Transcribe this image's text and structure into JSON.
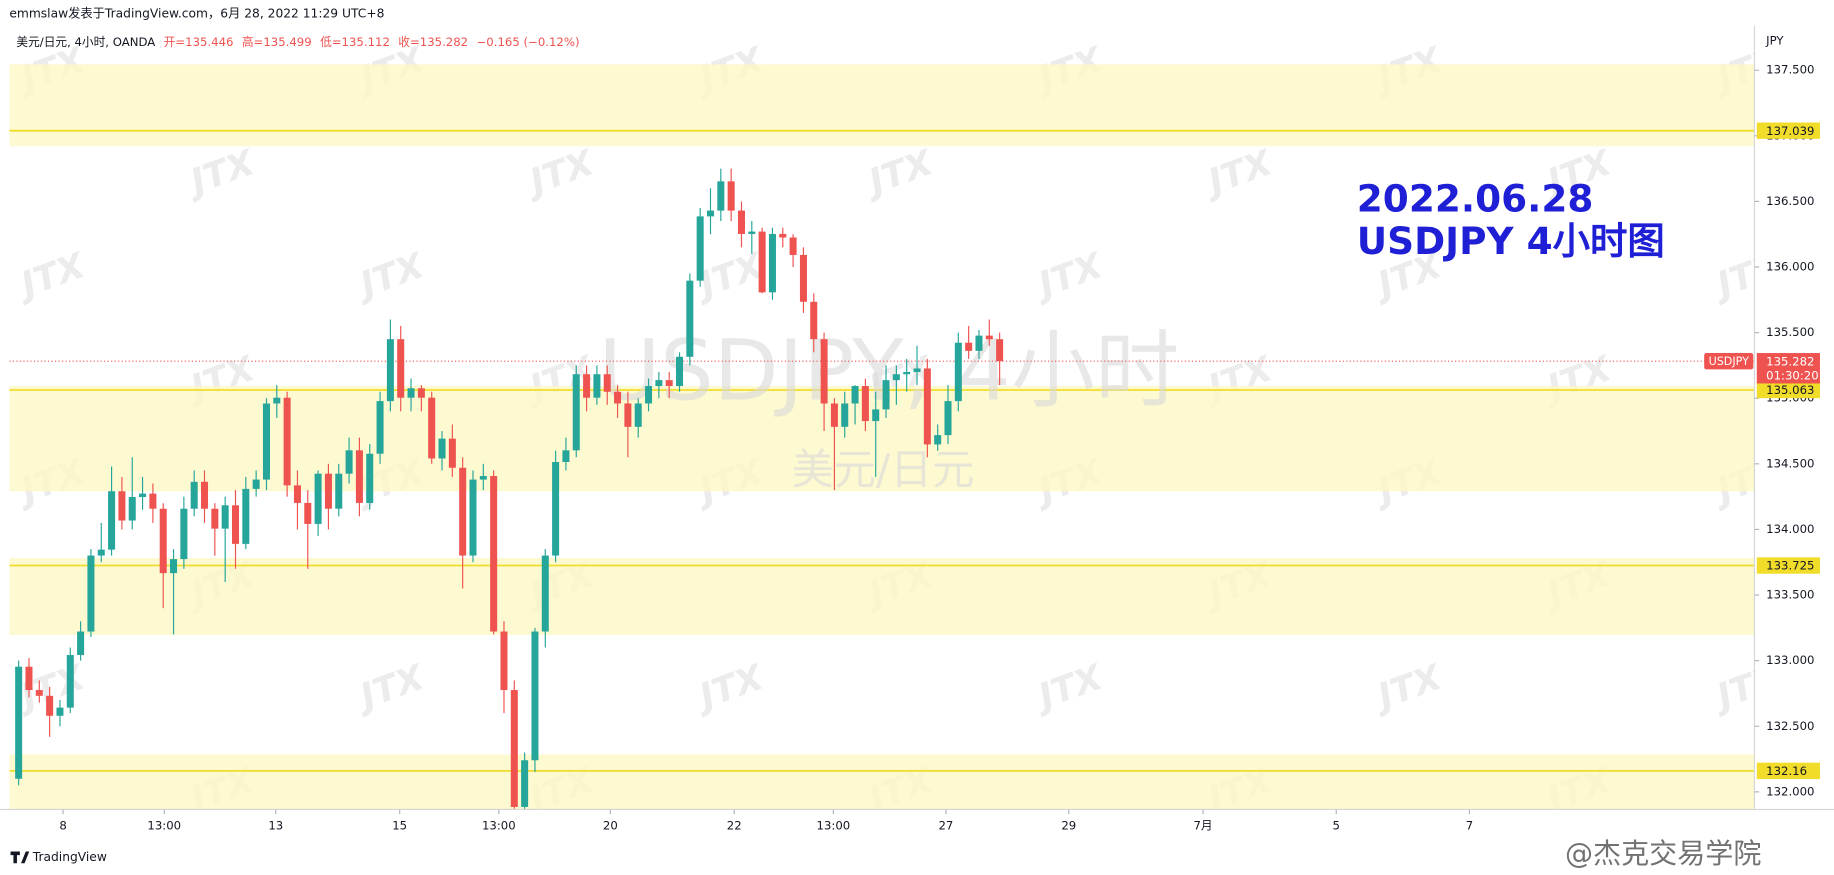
{
  "header": "emmslaw发表于TradingView.com，6月 28, 2022 11:29 UTC+8",
  "legend": {
    "symbol": "美元/日元, 4小时, OANDA",
    "open": "开=135.446",
    "high": "高=135.499",
    "low": "低=135.112",
    "close": "收=135.282",
    "change": "−0.165 (−0.12%)"
  },
  "footer": "TradingView",
  "corner_watermark": "@杰克交易学院",
  "chart_data": {
    "type": "candlestick",
    "axis_unit": "JPY",
    "watermark": "JTX",
    "symbol_watermark": "USDJPY, 4小时",
    "symbol_subtitle": "美元/日元",
    "annotation": [
      "2022.06.28",
      "USDJPY 4小时图"
    ],
    "annotation_color": "#1f1fd6",
    "up_color": "#26a69a",
    "down_color": "#ef5350",
    "grid": false,
    "open": [
      132.1,
      132.954,
      132.776,
      132.732,
      132.58,
      132.642,
      133.043,
      133.222,
      133.801,
      133.846,
      134.291,
      134.068,
      134.247,
      134.273,
      134.158,
      133.667,
      133.774,
      134.158,
      134.363,
      134.158,
      134.006,
      134.184,
      133.89,
      134.309,
      134.38,
      134.96,
      135.004,
      134.336,
      134.202,
      134.042,
      134.425,
      134.158,
      134.425,
      134.603,
      134.202,
      134.577,
      134.978,
      135.45,
      135.004,
      135.076,
      135.004,
      134.541,
      134.692,
      134.47,
      133.801,
      134.38,
      134.407,
      133.222,
      132.776,
      131.885,
      132.241,
      133.222,
      133.801,
      134.514,
      134.603,
      135.183,
      135.004,
      135.183,
      135.049,
      134.96,
      134.782,
      134.96,
      135.093,
      135.138,
      135.093,
      135.316,
      135.896,
      136.386,
      136.43,
      136.653,
      136.43,
      136.252,
      136.27,
      135.807,
      136.252,
      136.225,
      136.092,
      135.735,
      135.45,
      134.96,
      134.782,
      134.96,
      135.093,
      134.826,
      134.915,
      135.138,
      135.183,
      135.2,
      135.227,
      134.648,
      134.719,
      134.978,
      135.423,
      135.361,
      135.477,
      135.45
    ],
    "high": [
      133.0,
      133.02,
      132.85,
      132.8,
      132.7,
      133.1,
      133.3,
      133.85,
      134.05,
      134.48,
      134.4,
      134.55,
      134.4,
      134.35,
      134.2,
      133.85,
      134.25,
      134.45,
      134.45,
      134.2,
      134.25,
      134.3,
      134.4,
      134.45,
      135.0,
      135.1,
      135.05,
      134.45,
      134.3,
      134.45,
      134.5,
      134.5,
      134.7,
      134.7,
      134.65,
      135.05,
      135.6,
      135.55,
      135.15,
      135.1,
      135.05,
      134.75,
      134.8,
      134.55,
      134.45,
      134.5,
      134.45,
      133.3,
      132.85,
      132.3,
      133.25,
      133.85,
      134.6,
      134.7,
      135.25,
      135.25,
      135.25,
      135.25,
      135.1,
      135.05,
      135.0,
      135.15,
      135.2,
      135.2,
      135.35,
      135.95,
      136.45,
      136.6,
      136.75,
      136.75,
      136.5,
      136.35,
      136.3,
      136.3,
      136.3,
      136.25,
      136.15,
      135.8,
      135.5,
      135.0,
      135.05,
      135.1,
      135.15,
      135.05,
      135.25,
      135.25,
      135.3,
      135.4,
      135.3,
      134.8,
      135.1,
      135.5,
      135.55,
      135.52,
      135.6,
      135.5
    ],
    "low": [
      132.05,
      132.72,
      132.68,
      132.42,
      132.5,
      132.6,
      133.0,
      133.18,
      133.75,
      133.8,
      134.0,
      134.0,
      134.15,
      134.05,
      133.4,
      133.2,
      133.7,
      134.1,
      134.05,
      133.8,
      133.6,
      133.7,
      133.85,
      134.25,
      134.3,
      134.85,
      134.25,
      134.0,
      133.7,
      133.95,
      134.0,
      134.1,
      134.35,
      134.1,
      134.15,
      134.5,
      134.9,
      134.9,
      134.9,
      134.9,
      134.5,
      134.45,
      134.4,
      133.55,
      133.75,
      134.3,
      133.2,
      132.6,
      131.87,
      131.87,
      132.15,
      133.1,
      133.75,
      134.45,
      134.55,
      134.9,
      134.95,
      134.95,
      134.85,
      134.55,
      134.7,
      134.9,
      135.0,
      135.0,
      135.05,
      135.25,
      135.85,
      136.25,
      136.35,
      136.35,
      136.15,
      136.1,
      135.8,
      135.75,
      136.15,
      136.0,
      135.65,
      135.35,
      134.75,
      134.3,
      134.7,
      134.8,
      134.75,
      134.4,
      134.85,
      134.95,
      135.05,
      135.1,
      134.55,
      134.6,
      134.65,
      134.9,
      135.3,
      135.3,
      135.4,
      135.1
    ],
    "close": [
      132.954,
      132.776,
      132.732,
      132.58,
      132.642,
      133.043,
      133.222,
      133.801,
      133.846,
      134.291,
      134.068,
      134.247,
      134.273,
      134.158,
      133.667,
      133.774,
      134.158,
      134.363,
      134.158,
      134.006,
      134.184,
      133.89,
      134.309,
      134.38,
      134.96,
      135.004,
      134.336,
      134.202,
      134.042,
      134.425,
      134.158,
      134.425,
      134.603,
      134.202,
      134.577,
      134.978,
      135.45,
      135.004,
      135.076,
      135.004,
      134.541,
      134.692,
      134.47,
      133.801,
      134.38,
      134.407,
      133.222,
      132.776,
      131.885,
      132.241,
      133.222,
      133.801,
      134.514,
      134.603,
      135.183,
      135.004,
      135.183,
      135.049,
      134.96,
      134.782,
      134.96,
      135.093,
      135.138,
      135.093,
      135.316,
      135.896,
      136.386,
      136.43,
      136.653,
      136.43,
      136.252,
      136.27,
      135.807,
      136.252,
      136.225,
      136.092,
      135.735,
      135.45,
      134.96,
      134.782,
      134.96,
      135.093,
      134.826,
      134.915,
      135.138,
      135.183,
      135.2,
      135.227,
      134.648,
      134.719,
      134.978,
      135.423,
      135.361,
      135.477,
      135.45,
      135.282
    ],
    "xlim": [
      -0.9,
      168.1
    ],
    "xticks": [
      {
        "value": 4.3,
        "label": "8"
      },
      {
        "value": 14.1,
        "label": "13:00"
      },
      {
        "value": 24.9,
        "label": "13"
      },
      {
        "value": 36.9,
        "label": "15"
      },
      {
        "value": 46.5,
        "label": "13:00"
      },
      {
        "value": 57.3,
        "label": "20"
      },
      {
        "value": 69.3,
        "label": "22"
      },
      {
        "value": 78.9,
        "label": "13:00"
      },
      {
        "value": 89.8,
        "label": "27"
      },
      {
        "value": 101.7,
        "label": "29"
      },
      {
        "value": 114.7,
        "label": "7月"
      },
      {
        "value": 127.6,
        "label": "5"
      },
      {
        "value": 140.5,
        "label": "7"
      }
    ],
    "ylim": [
      131.866,
      137.785
    ],
    "yticks": [
      {
        "value": 132,
        "label": "132.000"
      },
      {
        "value": 132.5,
        "label": "132.500"
      },
      {
        "value": 133,
        "label": "133.000"
      },
      {
        "value": 133.5,
        "label": "133.500"
      },
      {
        "value": 134,
        "label": "134.000"
      },
      {
        "value": 134.5,
        "label": "134.500"
      },
      {
        "value": 135,
        "label": "135.000"
      },
      {
        "value": 135.5,
        "label": "135.500"
      },
      {
        "value": 136,
        "label": "136.000"
      },
      {
        "value": 136.5,
        "label": "136.500"
      },
      {
        "value": 137,
        "label": "137.000"
      },
      {
        "value": 137.5,
        "label": "137.500"
      }
    ],
    "zone_color": "#fdf8c4",
    "zone_line_color": "#f2dc2a",
    "zones": [
      {
        "from": 136.921,
        "to": 137.545,
        "line": 137.039
      },
      {
        "from": 134.291,
        "to": 135.093,
        "line": 135.063
      },
      {
        "from": 133.195,
        "to": 133.783,
        "line": 133.725
      },
      {
        "from": 131.866,
        "to": 132.286,
        "line": 132.16
      }
    ],
    "last_price": {
      "symbol": "USDJPY",
      "price": 135.282,
      "countdown": "01:30:20"
    }
  }
}
